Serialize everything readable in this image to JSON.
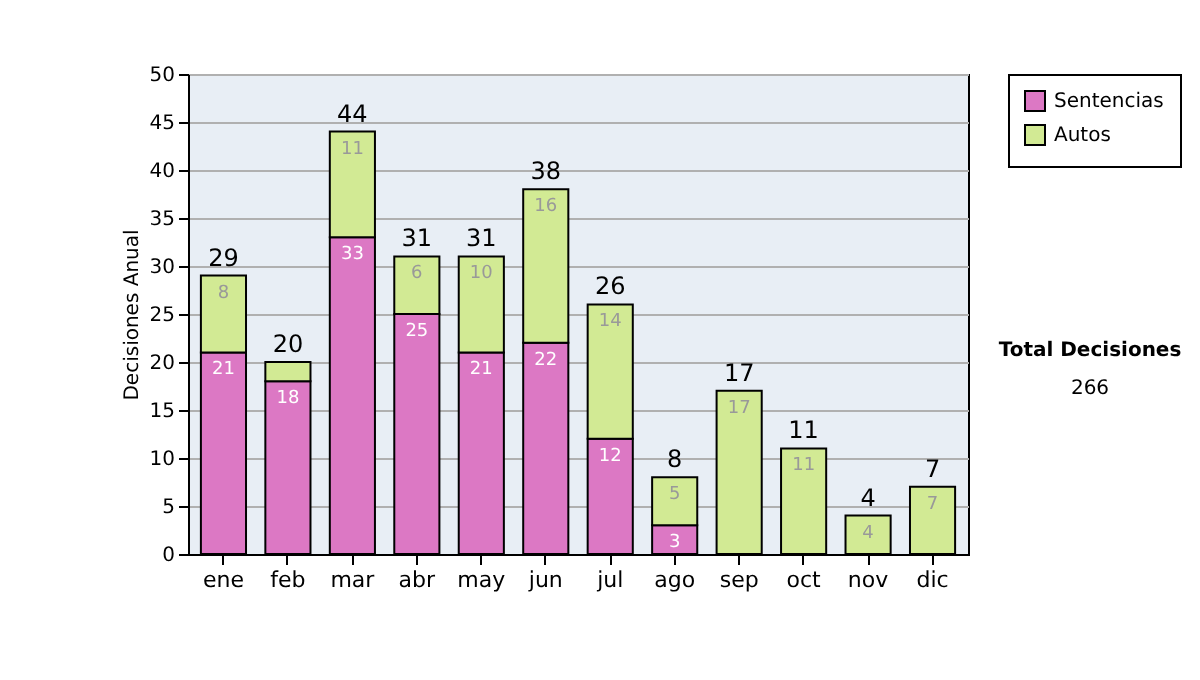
{
  "chart_data": {
    "type": "bar",
    "stacked": true,
    "ylabel": "Decisiones Anual",
    "categories": [
      "ene",
      "feb",
      "mar",
      "abr",
      "may",
      "jun",
      "jul",
      "ago",
      "sep",
      "oct",
      "nov",
      "dic"
    ],
    "series": [
      {
        "name": "Sentencias",
        "color": "#dc78c4",
        "values": [
          21,
          18,
          33,
          25,
          21,
          22,
          12,
          3,
          0,
          0,
          0,
          0
        ],
        "value_labels": [
          "21",
          "18",
          "33",
          "25",
          "21",
          "22",
          "12",
          "3",
          null,
          null,
          null,
          null
        ]
      },
      {
        "name": "Autos",
        "color": "#d2ea94",
        "values": [
          8,
          2,
          11,
          6,
          10,
          16,
          14,
          5,
          17,
          11,
          4,
          7
        ],
        "value_labels": [
          "8",
          null,
          "11",
          "6",
          "10",
          "16",
          "14",
          "5",
          "17",
          "11",
          "4",
          "7"
        ]
      }
    ],
    "totals": [
      "29",
      "20",
      "44",
      "31",
      "31",
      "38",
      "26",
      "8",
      "17",
      "11",
      "4",
      "7"
    ],
    "ylim": [
      0,
      50
    ],
    "yticks": [
      0,
      5,
      10,
      15,
      20,
      25,
      30,
      35,
      40,
      45,
      50
    ],
    "grid": "y",
    "legend": "right",
    "annotations": [
      "Total Decisiones",
      "266"
    ]
  }
}
